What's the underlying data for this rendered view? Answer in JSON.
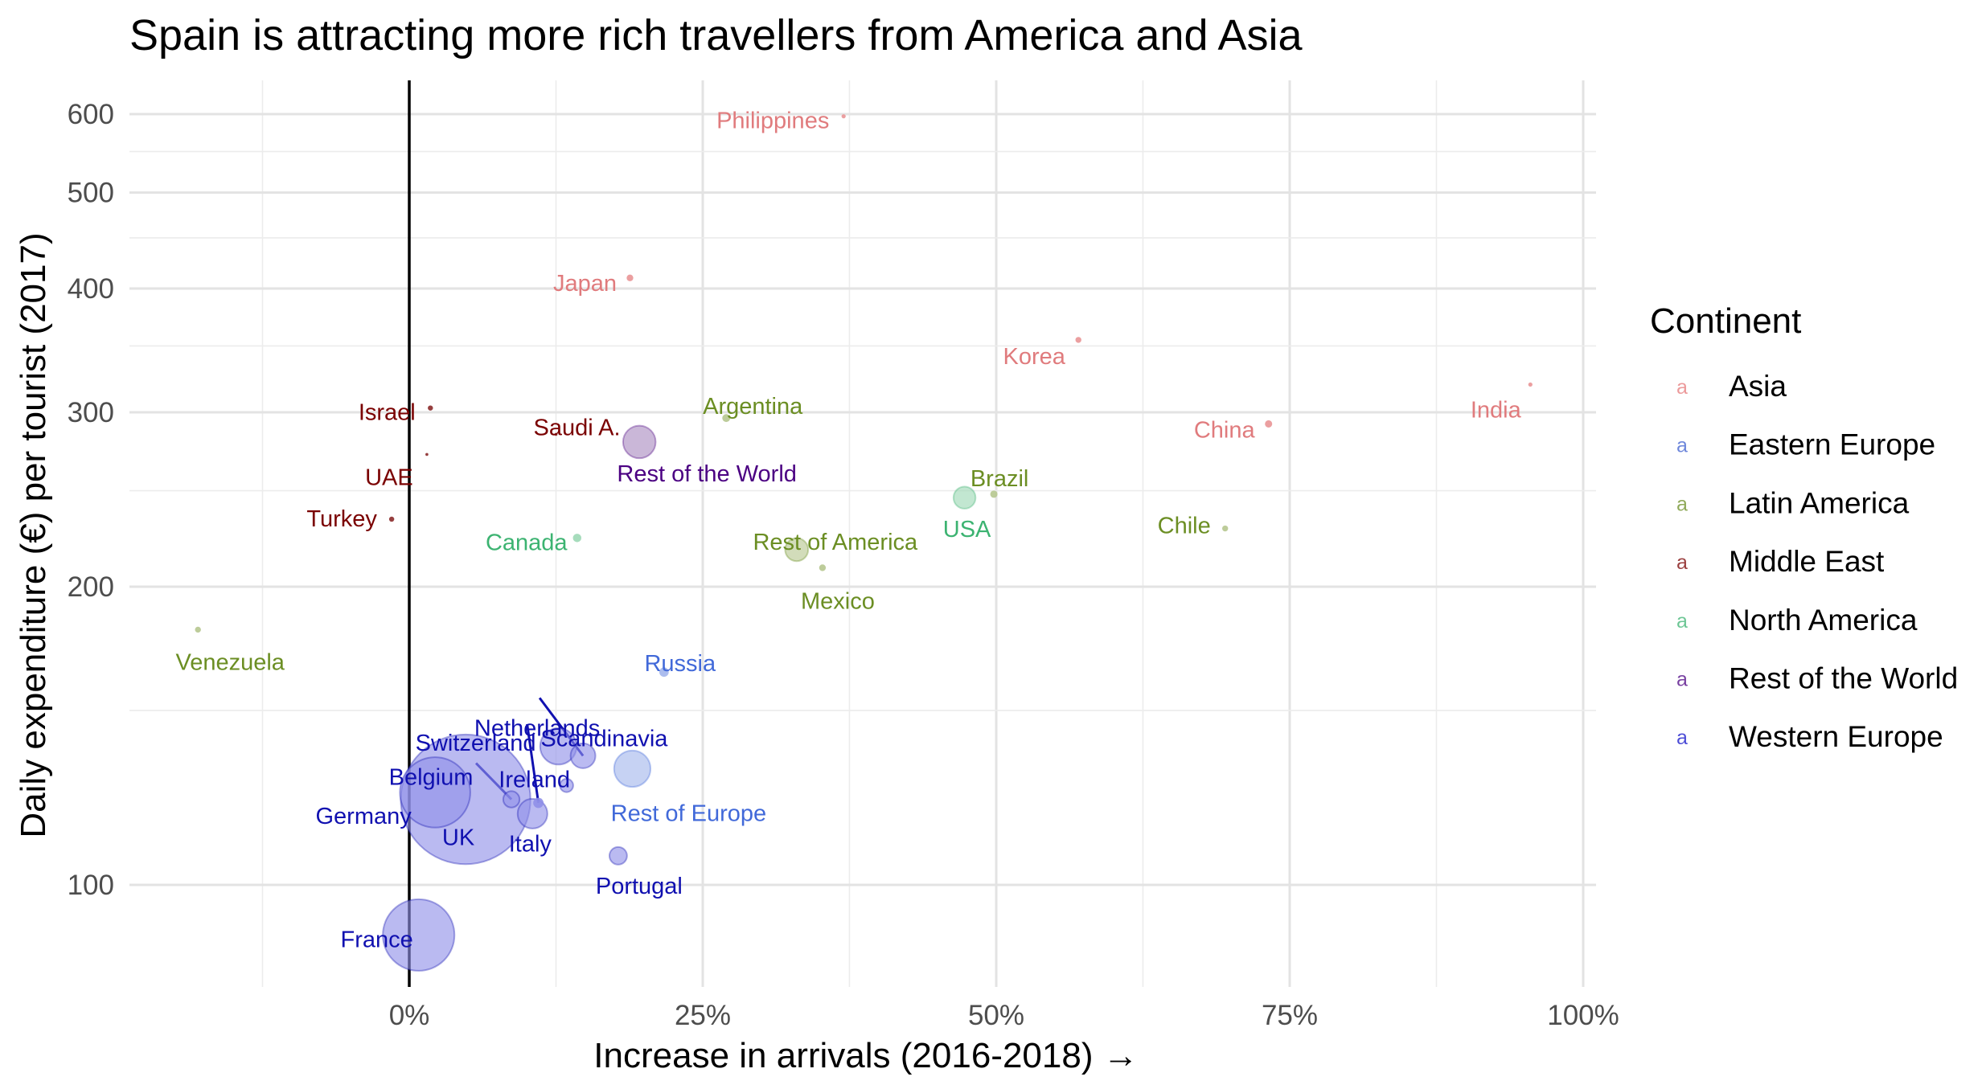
{
  "chart_data": {
    "type": "scatter",
    "title": "Spain is attracting more rich travellers from America and Asia",
    "xlabel": "Increase in arrivals (2016-2018) →",
    "ylabel": "Daily expenditure (€) per tourist (2017)",
    "x_scale": "linear",
    "y_scale": "log",
    "xlim": [
      -0.235,
      1.015
    ],
    "ylim": [
      80,
      640
    ],
    "x_ticks": [
      {
        "value": 0,
        "label": "0%"
      },
      {
        "value": 0.25,
        "label": "25%"
      },
      {
        "value": 0.5,
        "label": "50%"
      },
      {
        "value": 0.75,
        "label": "75%"
      },
      {
        "value": 1.0,
        "label": "100%"
      }
    ],
    "y_ticks": [
      {
        "value": 100,
        "label": "100"
      },
      {
        "value": 200,
        "label": "200"
      },
      {
        "value": 300,
        "label": "300"
      },
      {
        "value": 400,
        "label": "400"
      },
      {
        "value": 500,
        "label": "500"
      },
      {
        "value": 600,
        "label": "600"
      }
    ],
    "grid": true,
    "legend": {
      "title": "Continent",
      "position": "right",
      "key_glyph": "a",
      "entries": [
        {
          "name": "Asia",
          "color": "#e6787a"
        },
        {
          "name": "Eastern Europe",
          "color": "#3d5fcf"
        },
        {
          "name": "Latin America",
          "color": "#6b8e23"
        },
        {
          "name": "Middle East",
          "color": "#7a0000"
        },
        {
          "name": "North America",
          "color": "#3cb371"
        },
        {
          "name": "Rest of the World",
          "color": "#4b0082"
        },
        {
          "name": "Western Europe",
          "color": "#1010c8"
        }
      ]
    },
    "colors": {
      "Asia": {
        "point": "#e99596",
        "label": "#e07b7d"
      },
      "Eastern Europe": {
        "point": "#a3b6ec",
        "label": "#4169d9"
      },
      "Latin America": {
        "point": "#b6c78f",
        "label": "#6b8e23"
      },
      "Middle East": {
        "point": "#8b2a2a",
        "label": "#7a0000"
      },
      "North America": {
        "point": "#9cd8b5",
        "label": "#3cb371"
      },
      "Rest of the World": {
        "point": "#a98ac0",
        "label": "#4b0082"
      },
      "Western Europe": {
        "point": "#8f8fe8",
        "label": "#1010b0"
      }
    },
    "points": [
      {
        "name": "Philippines",
        "continent": "Asia",
        "x": 0.37,
        "y": 597,
        "size": 0.02
      },
      {
        "name": "Japan",
        "continent": "Asia",
        "x": 0.188,
        "y": 410,
        "size": 0.05
      },
      {
        "name": "Korea",
        "continent": "Asia",
        "x": 0.57,
        "y": 355,
        "size": 0.04
      },
      {
        "name": "India",
        "continent": "Asia",
        "x": 0.955,
        "y": 320,
        "size": 0.02
      },
      {
        "name": "China",
        "continent": "Asia",
        "x": 0.732,
        "y": 292,
        "size": 0.06
      },
      {
        "name": "Israel",
        "continent": "Middle East",
        "x": 0.018,
        "y": 303,
        "size": 0.03
      },
      {
        "name": "Saudi A.",
        "continent": "Middle East",
        "x": 0.125,
        "y": 285,
        "size": 0.01
      },
      {
        "name": "UAE",
        "continent": "Middle East",
        "x": 0.015,
        "y": 272,
        "size": 0.01
      },
      {
        "name": "Turkey",
        "continent": "Middle East",
        "x": -0.015,
        "y": 234,
        "size": 0.03
      },
      {
        "name": "Argentina",
        "continent": "Latin America",
        "x": 0.27,
        "y": 296,
        "size": 0.07
      },
      {
        "name": "Brazil",
        "continent": "Latin America",
        "x": 0.498,
        "y": 248,
        "size": 0.06
      },
      {
        "name": "Chile",
        "continent": "Latin America",
        "x": 0.695,
        "y": 229,
        "size": 0.04
      },
      {
        "name": "Rest of America",
        "continent": "Latin America",
        "x": 0.33,
        "y": 218,
        "size": 0.6
      },
      {
        "name": "Mexico",
        "continent": "Latin America",
        "x": 0.352,
        "y": 209,
        "size": 0.05
      },
      {
        "name": "Venezuela",
        "continent": "Latin America",
        "x": -0.18,
        "y": 181,
        "size": 0.04
      },
      {
        "name": "Rest of the World",
        "continent": "Rest of the World",
        "x": 0.196,
        "y": 280,
        "size": 1.2
      },
      {
        "name": "USA",
        "continent": "North America",
        "x": 0.473,
        "y": 246,
        "size": 0.55
      },
      {
        "name": "Canada",
        "continent": "North America",
        "x": 0.143,
        "y": 224,
        "size": 0.08
      },
      {
        "name": "Russia",
        "continent": "Eastern Europe",
        "x": 0.217,
        "y": 164,
        "size": 0.1
      },
      {
        "name": "Rest of Europe",
        "continent": "Eastern Europe",
        "x": 0.19,
        "y": 131,
        "size": 1.5
      },
      {
        "name": "Scandinavia",
        "continent": "Western Europe",
        "x": 0.127,
        "y": 138,
        "size": 1.5
      },
      {
        "name": "Netherlands",
        "continent": "Western Europe",
        "x": 0.148,
        "y": 135,
        "size": 0.7
      },
      {
        "name": "Ireland",
        "continent": "Western Europe",
        "x": 0.134,
        "y": 126,
        "size": 0.2
      },
      {
        "name": "Switzerland",
        "continent": "Western Europe",
        "x": 0.11,
        "y": 121,
        "size": 0.12
      },
      {
        "name": "Belgium",
        "continent": "Western Europe",
        "x": 0.087,
        "y": 122,
        "size": 0.3
      },
      {
        "name": "Germany",
        "continent": "Western Europe",
        "x": 0.022,
        "y": 124,
        "size": 5.6
      },
      {
        "name": "UK",
        "continent": "Western Europe",
        "x": 0.048,
        "y": 122,
        "size": 19.0
      },
      {
        "name": "Italy",
        "continent": "Western Europe",
        "x": 0.105,
        "y": 118,
        "size": 1.0
      },
      {
        "name": "Portugal",
        "continent": "Western Europe",
        "x": 0.178,
        "y": 107,
        "size": 0.35
      },
      {
        "name": "France",
        "continent": "Western Europe",
        "x": 0.008,
        "y": 89,
        "size": 5.8
      }
    ]
  }
}
